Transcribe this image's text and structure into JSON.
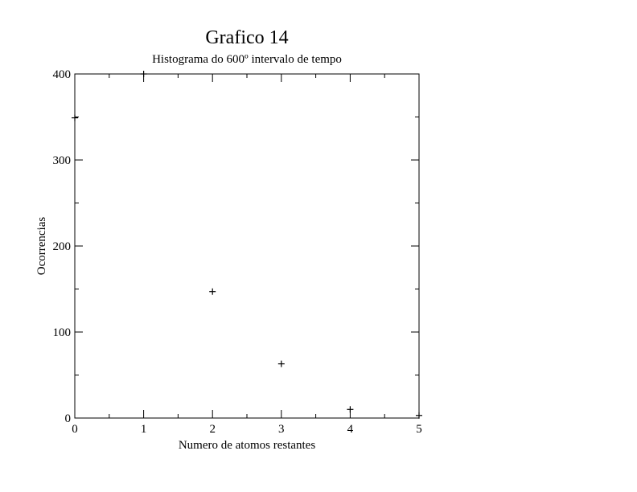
{
  "chart_data": {
    "type": "scatter",
    "title": "Grafico 14",
    "subtitle": "Histograma do 600º intervalo de tempo",
    "xlabel": "Numero de atomos restantes",
    "ylabel": "Ocorrencias",
    "xlim": [
      0,
      5
    ],
    "ylim": [
      0,
      400
    ],
    "x_ticks": [
      0,
      1,
      2,
      3,
      4,
      5
    ],
    "x_tick_labels": [
      "0",
      "1",
      "2",
      "3",
      "4",
      "5"
    ],
    "y_ticks": [
      0,
      100,
      200,
      300,
      400
    ],
    "y_tick_labels": [
      "0",
      "100",
      "200",
      "300",
      "400"
    ],
    "x_minor_step": 0.5,
    "y_minor_step": 50,
    "grid": false,
    "marker": "plus",
    "series": [
      {
        "x": [
          0,
          1,
          2,
          3,
          4,
          5
        ],
        "y": [
          349,
          400,
          147,
          63,
          10,
          3
        ]
      }
    ],
    "colors": {
      "axis": "#000000",
      "marker": "#000000",
      "background": "#ffffff"
    }
  }
}
